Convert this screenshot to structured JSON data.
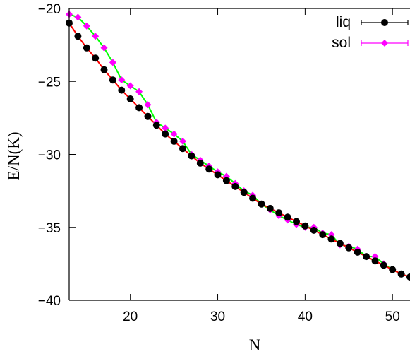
{
  "chart_data": {
    "type": "line",
    "xlabel": "N",
    "ylabel": "E/N(K)",
    "xlim": [
      13,
      52
    ],
    "ylim": [
      -40,
      -20
    ],
    "xticks": [
      20,
      30,
      40,
      50
    ],
    "yticks": [
      -20,
      -25,
      -30,
      -35,
      -40
    ],
    "grid": false,
    "legend_position": "top-right",
    "series": [
      {
        "name": "liq",
        "line_color": "#ff0000",
        "marker_color": "#000000",
        "marker": "circle",
        "x": [
          13,
          14,
          15,
          16,
          17,
          18,
          19,
          20,
          21,
          22,
          23,
          24,
          25,
          26,
          27,
          28,
          29,
          30,
          31,
          32,
          33,
          34,
          35,
          36,
          37,
          38,
          39,
          40,
          41,
          42,
          43,
          44,
          45,
          46,
          47,
          48,
          49,
          50,
          51,
          52
        ],
        "y": [
          -21.0,
          -21.9,
          -22.7,
          -23.4,
          -24.2,
          -24.9,
          -25.6,
          -26.2,
          -26.8,
          -27.4,
          -28.0,
          -28.6,
          -29.1,
          -29.6,
          -30.1,
          -30.6,
          -31.0,
          -31.4,
          -31.8,
          -32.2,
          -32.6,
          -33.0,
          -33.4,
          -33.7,
          -34.0,
          -34.3,
          -34.6,
          -34.9,
          -35.2,
          -35.5,
          -35.8,
          -36.1,
          -36.4,
          -36.7,
          -37.0,
          -37.3,
          -37.6,
          -37.9,
          -38.2,
          -38.4
        ]
      },
      {
        "name": "sol",
        "line_color": "#00ff00",
        "marker_color": "#ff00ff",
        "marker": "diamond",
        "x": [
          13,
          14,
          15,
          16,
          17,
          18,
          19,
          20,
          21,
          22,
          23,
          24,
          25,
          26,
          27,
          28,
          29,
          30,
          31,
          32,
          33,
          34,
          35,
          36,
          37,
          38,
          39,
          40,
          41,
          42,
          43,
          44,
          45,
          46,
          47,
          48,
          49,
          50,
          51,
          52
        ],
        "y": [
          -20.4,
          -20.6,
          -21.2,
          -21.9,
          -22.7,
          -23.7,
          -24.9,
          -25.3,
          -25.7,
          -26.6,
          -27.8,
          -28.2,
          -28.6,
          -29.1,
          -30.0,
          -30.4,
          -30.8,
          -31.2,
          -31.5,
          -32.0,
          -32.5,
          -32.8,
          -33.4,
          -33.8,
          -34.2,
          -34.5,
          -34.8,
          -35.0,
          -35.0,
          -35.4,
          -35.5,
          -36.2,
          -36.3,
          -36.5,
          -37.0,
          -37.0,
          -37.5,
          -37.9,
          -38.2,
          -38.4
        ]
      }
    ]
  }
}
